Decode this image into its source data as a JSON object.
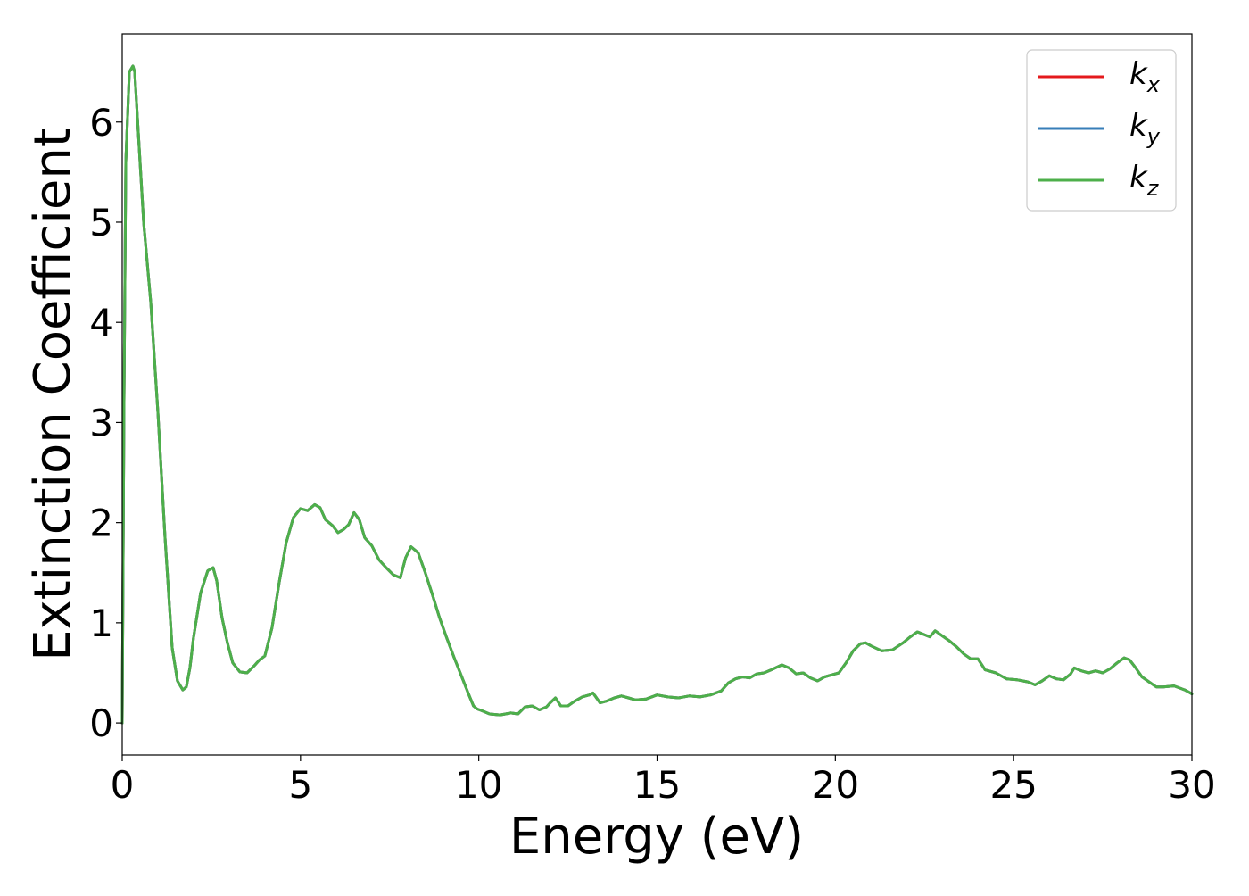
{
  "chart_data": {
    "type": "line",
    "title": "",
    "xlabel": "Energy (eV)",
    "ylabel": "Extinction Coefficient",
    "xlim": [
      0,
      30
    ],
    "ylim": [
      -0.32,
      6.88
    ],
    "xticks": [
      0,
      5,
      10,
      15,
      20,
      25,
      30
    ],
    "yticks": [
      0,
      1,
      2,
      3,
      4,
      5,
      6
    ],
    "grid": false,
    "legend_position": "top-right",
    "x": [
      0,
      0.05,
      0.1,
      0.2,
      0.3,
      0.35,
      0.45,
      0.6,
      0.8,
      1.0,
      1.2,
      1.4,
      1.55,
      1.7,
      1.8,
      1.9,
      2.0,
      2.2,
      2.4,
      2.55,
      2.65,
      2.8,
      2.95,
      3.1,
      3.3,
      3.5,
      3.7,
      3.85,
      4.0,
      4.2,
      4.4,
      4.6,
      4.8,
      5.0,
      5.2,
      5.4,
      5.55,
      5.7,
      5.9,
      6.05,
      6.2,
      6.35,
      6.5,
      6.65,
      6.8,
      7.0,
      7.2,
      7.4,
      7.6,
      7.8,
      7.95,
      8.1,
      8.3,
      8.5,
      8.7,
      8.9,
      9.1,
      9.3,
      9.5,
      9.7,
      9.85,
      9.95,
      10.1,
      10.3,
      10.6,
      10.9,
      11.1,
      11.3,
      11.5,
      11.7,
      11.9,
      12.0,
      12.15,
      12.3,
      12.5,
      12.7,
      12.9,
      13.1,
      13.2,
      13.4,
      13.6,
      13.8,
      14.0,
      14.2,
      14.4,
      14.7,
      15.0,
      15.3,
      15.6,
      15.9,
      16.2,
      16.5,
      16.8,
      17.0,
      17.2,
      17.4,
      17.6,
      17.8,
      18.0,
      18.2,
      18.5,
      18.7,
      18.9,
      19.1,
      19.3,
      19.5,
      19.7,
      19.9,
      20.1,
      20.3,
      20.5,
      20.7,
      20.85,
      21.0,
      21.3,
      21.6,
      21.9,
      22.1,
      22.3,
      22.5,
      22.65,
      22.8,
      23.0,
      23.2,
      23.4,
      23.6,
      23.8,
      24.0,
      24.2,
      24.5,
      24.8,
      25.1,
      25.4,
      25.6,
      25.8,
      26.0,
      26.2,
      26.4,
      26.6,
      26.7,
      26.9,
      27.1,
      27.3,
      27.5,
      27.7,
      27.9,
      28.1,
      28.25,
      28.4,
      28.6,
      28.8,
      29.0,
      29.2,
      29.5,
      29.8,
      30.0
    ],
    "series": [
      {
        "name": "k_x",
        "label_base": "k",
        "label_sub": "x",
        "color": "#e41a1c",
        "values": [
          0,
          3.2,
          5.6,
          6.5,
          6.56,
          6.5,
          5.9,
          5.0,
          4.2,
          3.1,
          1.85,
          0.75,
          0.42,
          0.33,
          0.36,
          0.55,
          0.85,
          1.3,
          1.52,
          1.55,
          1.42,
          1.05,
          0.8,
          0.6,
          0.51,
          0.5,
          0.57,
          0.63,
          0.67,
          0.95,
          1.4,
          1.8,
          2.05,
          2.14,
          2.12,
          2.18,
          2.15,
          2.03,
          1.97,
          1.9,
          1.93,
          1.98,
          2.1,
          2.03,
          1.85,
          1.77,
          1.63,
          1.55,
          1.48,
          1.45,
          1.65,
          1.76,
          1.7,
          1.5,
          1.28,
          1.05,
          0.85,
          0.66,
          0.48,
          0.3,
          0.17,
          0.14,
          0.12,
          0.09,
          0.08,
          0.1,
          0.09,
          0.16,
          0.17,
          0.13,
          0.16,
          0.2,
          0.25,
          0.17,
          0.17,
          0.22,
          0.26,
          0.28,
          0.3,
          0.2,
          0.22,
          0.25,
          0.27,
          0.25,
          0.23,
          0.24,
          0.28,
          0.26,
          0.25,
          0.27,
          0.26,
          0.28,
          0.32,
          0.4,
          0.44,
          0.46,
          0.45,
          0.49,
          0.5,
          0.53,
          0.58,
          0.55,
          0.49,
          0.5,
          0.45,
          0.42,
          0.46,
          0.48,
          0.5,
          0.6,
          0.72,
          0.79,
          0.8,
          0.77,
          0.72,
          0.73,
          0.8,
          0.86,
          0.91,
          0.88,
          0.86,
          0.92,
          0.87,
          0.82,
          0.76,
          0.69,
          0.64,
          0.64,
          0.53,
          0.5,
          0.44,
          0.43,
          0.41,
          0.38,
          0.42,
          0.47,
          0.44,
          0.43,
          0.49,
          0.55,
          0.52,
          0.5,
          0.52,
          0.5,
          0.54,
          0.6,
          0.65,
          0.63,
          0.56,
          0.46,
          0.41,
          0.36,
          0.36,
          0.37,
          0.33,
          0.29
        ]
      },
      {
        "name": "k_y",
        "label_base": "k",
        "label_sub": "y",
        "color": "#377eb8",
        "values": [
          0,
          3.2,
          5.6,
          6.5,
          6.56,
          6.5,
          5.9,
          5.0,
          4.2,
          3.1,
          1.85,
          0.75,
          0.42,
          0.33,
          0.36,
          0.55,
          0.85,
          1.3,
          1.52,
          1.55,
          1.42,
          1.05,
          0.8,
          0.6,
          0.51,
          0.5,
          0.57,
          0.63,
          0.67,
          0.95,
          1.4,
          1.8,
          2.05,
          2.14,
          2.12,
          2.18,
          2.15,
          2.03,
          1.97,
          1.9,
          1.93,
          1.98,
          2.1,
          2.03,
          1.85,
          1.77,
          1.63,
          1.55,
          1.48,
          1.45,
          1.65,
          1.76,
          1.7,
          1.5,
          1.28,
          1.05,
          0.85,
          0.66,
          0.48,
          0.3,
          0.17,
          0.14,
          0.12,
          0.09,
          0.08,
          0.1,
          0.09,
          0.16,
          0.17,
          0.13,
          0.16,
          0.2,
          0.25,
          0.17,
          0.17,
          0.22,
          0.26,
          0.28,
          0.3,
          0.2,
          0.22,
          0.25,
          0.27,
          0.25,
          0.23,
          0.24,
          0.28,
          0.26,
          0.25,
          0.27,
          0.26,
          0.28,
          0.32,
          0.4,
          0.44,
          0.46,
          0.45,
          0.49,
          0.5,
          0.53,
          0.58,
          0.55,
          0.49,
          0.5,
          0.45,
          0.42,
          0.46,
          0.48,
          0.5,
          0.6,
          0.72,
          0.79,
          0.8,
          0.77,
          0.72,
          0.73,
          0.8,
          0.86,
          0.91,
          0.88,
          0.86,
          0.92,
          0.87,
          0.82,
          0.76,
          0.69,
          0.64,
          0.64,
          0.53,
          0.5,
          0.44,
          0.43,
          0.41,
          0.38,
          0.42,
          0.47,
          0.44,
          0.43,
          0.49,
          0.55,
          0.52,
          0.5,
          0.52,
          0.5,
          0.54,
          0.6,
          0.65,
          0.63,
          0.56,
          0.46,
          0.41,
          0.36,
          0.36,
          0.37,
          0.33,
          0.29
        ]
      },
      {
        "name": "k_z",
        "label_base": "k",
        "label_sub": "z",
        "color": "#4daf4a",
        "values": [
          0,
          3.2,
          5.6,
          6.5,
          6.56,
          6.5,
          5.9,
          5.0,
          4.2,
          3.1,
          1.85,
          0.75,
          0.42,
          0.33,
          0.36,
          0.55,
          0.85,
          1.3,
          1.52,
          1.55,
          1.42,
          1.05,
          0.8,
          0.6,
          0.51,
          0.5,
          0.57,
          0.63,
          0.67,
          0.95,
          1.4,
          1.8,
          2.05,
          2.14,
          2.12,
          2.18,
          2.15,
          2.03,
          1.97,
          1.9,
          1.93,
          1.98,
          2.1,
          2.03,
          1.85,
          1.77,
          1.63,
          1.55,
          1.48,
          1.45,
          1.65,
          1.76,
          1.7,
          1.5,
          1.28,
          1.05,
          0.85,
          0.66,
          0.48,
          0.3,
          0.17,
          0.14,
          0.12,
          0.09,
          0.08,
          0.1,
          0.09,
          0.16,
          0.17,
          0.13,
          0.16,
          0.2,
          0.25,
          0.17,
          0.17,
          0.22,
          0.26,
          0.28,
          0.3,
          0.2,
          0.22,
          0.25,
          0.27,
          0.25,
          0.23,
          0.24,
          0.28,
          0.26,
          0.25,
          0.27,
          0.26,
          0.28,
          0.32,
          0.4,
          0.44,
          0.46,
          0.45,
          0.49,
          0.5,
          0.53,
          0.58,
          0.55,
          0.49,
          0.5,
          0.45,
          0.42,
          0.46,
          0.48,
          0.5,
          0.6,
          0.72,
          0.79,
          0.8,
          0.77,
          0.72,
          0.73,
          0.8,
          0.86,
          0.91,
          0.88,
          0.86,
          0.92,
          0.87,
          0.82,
          0.76,
          0.69,
          0.64,
          0.64,
          0.53,
          0.5,
          0.44,
          0.43,
          0.41,
          0.38,
          0.42,
          0.47,
          0.44,
          0.43,
          0.49,
          0.55,
          0.52,
          0.5,
          0.52,
          0.5,
          0.54,
          0.6,
          0.65,
          0.63,
          0.56,
          0.46,
          0.41,
          0.36,
          0.36,
          0.37,
          0.33,
          0.29
        ]
      }
    ]
  }
}
